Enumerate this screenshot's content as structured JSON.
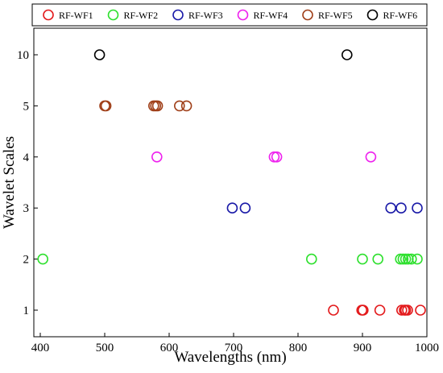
{
  "chart_data": {
    "type": "scatter",
    "xlabel": "Wavelengths (nm)",
    "ylabel": "Wavelet Scales",
    "xlim": [
      390,
      1000
    ],
    "xticks": [
      400,
      500,
      600,
      700,
      800,
      900,
      1000
    ],
    "y_categories": [
      "1",
      "2",
      "3",
      "4",
      "5",
      "10"
    ],
    "legend_position": "top",
    "grid": false,
    "series": [
      {
        "name": "RF-WF1",
        "color": "#e31a1c",
        "y": "1",
        "x": [
          855,
          899,
          901,
          927,
          961,
          965,
          967,
          970,
          990
        ]
      },
      {
        "name": "RF-WF2",
        "color": "#2ee02e",
        "y": "2",
        "x": [
          404,
          821,
          900,
          924,
          959,
          963,
          967,
          971,
          976,
          985
        ]
      },
      {
        "name": "RF-WF3",
        "color": "#1a1aa8",
        "y": "3",
        "x": [
          698,
          718,
          944,
          960,
          985
        ]
      },
      {
        "name": "RF-WF4",
        "color": "#ee22ee",
        "y": "4",
        "x": [
          581,
          763,
          767,
          913
        ]
      },
      {
        "name": "RF-WF5",
        "color": "#a0401a",
        "y": "5",
        "x": [
          500,
          502,
          576,
          579,
          582,
          616,
          627
        ]
      },
      {
        "name": "RF-WF6",
        "color": "#000000",
        "y": "10",
        "x": [
          492,
          876
        ]
      }
    ]
  }
}
